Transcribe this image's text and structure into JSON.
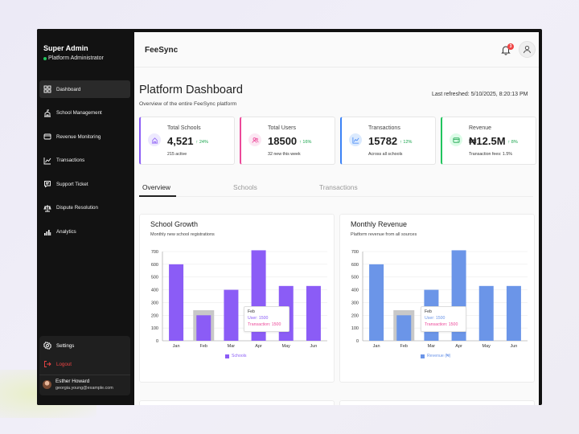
{
  "sidebar": {
    "user_name": "Super Admin",
    "user_role": "Platform Administrator",
    "items": [
      {
        "label": "Dashboard",
        "icon": "dashboard-icon",
        "active": true
      },
      {
        "label": "School Management",
        "icon": "school-icon"
      },
      {
        "label": "Revenue Monitoring",
        "icon": "revenue-icon"
      },
      {
        "label": "Transactions",
        "icon": "transactions-icon"
      },
      {
        "label": "Support Ticket",
        "icon": "support-icon"
      },
      {
        "label": "Dispute Resolution",
        "icon": "dispute-icon"
      },
      {
        "label": "Analytics",
        "icon": "analytics-icon"
      }
    ],
    "settings_label": "Settings",
    "logout_label": "Logout",
    "profile_name": "Esther Howard",
    "profile_email": "georgia.young@example.com"
  },
  "header": {
    "brand": "FeeSync",
    "notification_count": "3"
  },
  "page": {
    "title": "Platform Dashboard",
    "subtitle": "Overview of the entire FeeSync platform",
    "last_refreshed": "Last refreshed: 5/10/2025, 8:20:13 PM"
  },
  "stats": [
    {
      "label": "Total Schools",
      "value": "4,521",
      "change": "↑ 24%",
      "note": "215 active",
      "color": "#8b5cf6"
    },
    {
      "label": "Total Users",
      "value": "18500",
      "change": "↑ 16%",
      "note": "32 new this week",
      "color": "#ec4899"
    },
    {
      "label": "Transactions",
      "value": "15782",
      "change": "↑ 12%",
      "note": "Across all schools",
      "color": "#3b82f6"
    },
    {
      "label": "Revenue",
      "value": "₦12.5M",
      "change": "↑ 8%",
      "note": "Transaction fees: 1.5%",
      "color": "#22c55e"
    }
  ],
  "tabs": [
    "Overview",
    "Schools",
    "Transactions"
  ],
  "tooltip": {
    "title": "Feb",
    "line1": "User: 1500",
    "line2": "Transaction: 1500"
  },
  "chart_data": [
    {
      "type": "bar",
      "title": "School Growth",
      "subtitle": "Monthly new school registrations",
      "categories": [
        "Jan",
        "Feb",
        "Mar",
        "Apr",
        "May",
        "Jun"
      ],
      "series": [
        {
          "name": "Schools",
          "values": [
            600,
            200,
            400,
            710,
            430,
            430
          ],
          "color": "#8b5cf6"
        }
      ],
      "hover_index": 1,
      "hover_highlight_value": 240,
      "yticks": [
        0,
        100,
        200,
        300,
        400,
        500,
        600,
        700
      ],
      "ylim": [
        0,
        700
      ],
      "grid": true,
      "legend": "bottom"
    },
    {
      "type": "bar",
      "title": "Monthly Revenue",
      "subtitle": "Platform revenue from all sources",
      "categories": [
        "Jan",
        "Feb",
        "Mar",
        "Apr",
        "May",
        "Jun"
      ],
      "series": [
        {
          "name": "Revenue (₦)",
          "values": [
            600,
            200,
            400,
            710,
            430,
            430
          ],
          "color": "#6b95e8"
        }
      ],
      "hover_index": 1,
      "hover_highlight_value": 240,
      "yticks": [
        0,
        100,
        200,
        300,
        400,
        500,
        600,
        700
      ],
      "ylim": [
        0,
        700
      ],
      "grid": true,
      "legend": "bottom"
    }
  ]
}
